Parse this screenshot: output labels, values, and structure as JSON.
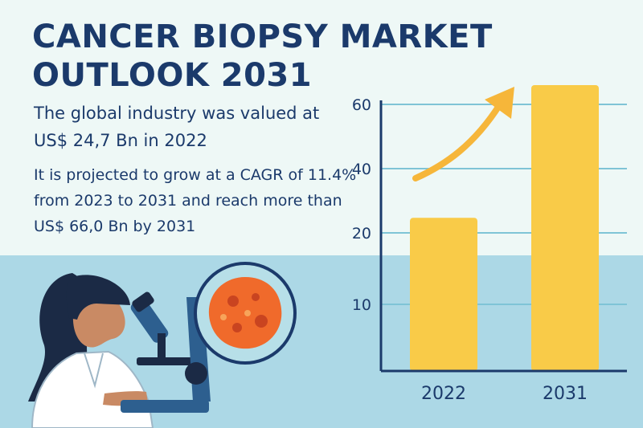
{
  "header": {
    "title_line1": "CANCER BIOPSY MARKET",
    "title_line2": "OUTLOOK 2031"
  },
  "stats": {
    "valued": "The global industry was valued at US$ 24,7 Bn in 2022",
    "projection": "It is projected to grow at a CAGR of 11.4% from 2023 to 2031 and reach more than US$ 66,0 Bn by 2031"
  },
  "colors": {
    "title": "#1b3a6b",
    "bar": "#f9cb48",
    "grid": "#7fc4d6",
    "axis": "#1b3a6b",
    "background_top": "#eef8f6",
    "background_bottom": "#acd8e6"
  },
  "illustration": {
    "subject": "scientist looking through microscope",
    "icons": [
      "scientist-icon",
      "microscope-icon",
      "cancer-cell-icon",
      "growth-arrow-icon"
    ]
  },
  "chart_data": {
    "type": "bar",
    "categories": [
      "2022",
      "2031"
    ],
    "values": [
      24.7,
      66.0
    ],
    "yticks": [
      10,
      20,
      40,
      60
    ],
    "ylim": [
      0,
      70
    ],
    "grid": true,
    "legend": "none"
  }
}
